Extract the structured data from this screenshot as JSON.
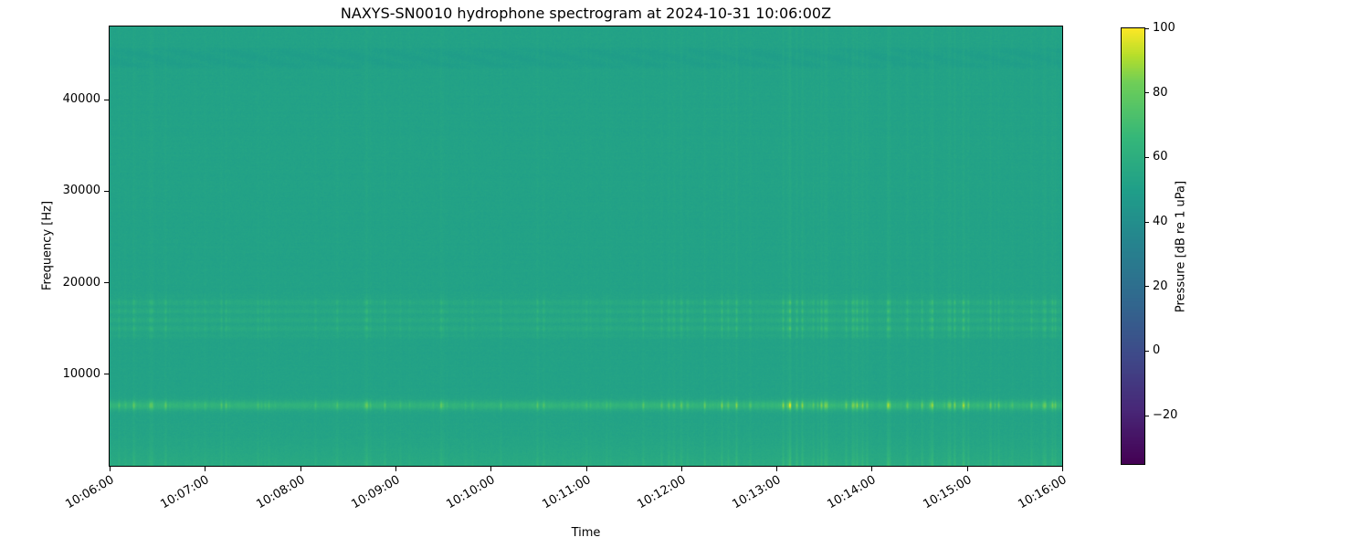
{
  "chart_data": {
    "type": "heatmap",
    "title": "NAXYS-SN0010 hydrophone spectrogram at 2024-10-31 10:06:00Z",
    "xlabel": "Time",
    "ylabel": "Frequency [Hz]",
    "grid": false,
    "legend": "none",
    "y_range_hz": [
      0,
      48000
    ],
    "x_range": [
      "10:06:00",
      "10:16:00"
    ],
    "x_ticks": [
      {
        "label": "10:06:00"
      },
      {
        "label": "10:07:00"
      },
      {
        "label": "10:08:00"
      },
      {
        "label": "10:09:00"
      },
      {
        "label": "10:10:00"
      },
      {
        "label": "10:11:00"
      },
      {
        "label": "10:12:00"
      },
      {
        "label": "10:13:00"
      },
      {
        "label": "10:14:00"
      },
      {
        "label": "10:15:00"
      },
      {
        "label": "10:16:00"
      }
    ],
    "y_ticks": [
      {
        "value": 10000,
        "label": "10000"
      },
      {
        "value": 20000,
        "label": "20000"
      },
      {
        "value": 30000,
        "label": "30000"
      },
      {
        "value": 40000,
        "label": "40000"
      }
    ],
    "colorbar": {
      "label": "Pressure [dB re 1 uPa]",
      "vmin": -35,
      "vmax": 100,
      "ticks": [
        {
          "value": 100,
          "label": "100"
        },
        {
          "value": 80,
          "label": "80"
        },
        {
          "value": 60,
          "label": "60"
        },
        {
          "value": 40,
          "label": "40"
        },
        {
          "value": 20,
          "label": "20"
        },
        {
          "value": 0,
          "label": "0"
        },
        {
          "value": -20,
          "label": "−20"
        }
      ]
    },
    "colormap": {
      "name": "viridis",
      "stops": [
        {
          "p": 0.0,
          "color": "#440154"
        },
        {
          "p": 0.125,
          "color": "#482878"
        },
        {
          "p": 0.25,
          "color": "#3e4a89"
        },
        {
          "p": 0.375,
          "color": "#31688e"
        },
        {
          "p": 0.5,
          "color": "#26828e"
        },
        {
          "p": 0.625,
          "color": "#1f9e89"
        },
        {
          "p": 0.75,
          "color": "#35b779"
        },
        {
          "p": 0.875,
          "color": "#6ece58"
        },
        {
          "p": 0.9375,
          "color": "#b5de2b"
        },
        {
          "p": 1.0,
          "color": "#fde725"
        }
      ]
    },
    "content": {
      "description": "Ambient level ~52 dB with vertical impulsive striping; bright tonal band near 6.6 kHz, elevated striated band 14-19 kHz, bright streaky band below 3 kHz, faint smooth darker band near 44-46 kHz.",
      "base_db": 52,
      "stripe_global_gain": 3,
      "noise_db": 1.5,
      "seed": 42,
      "bands": [
        {
          "kind": "exp-low",
          "scale_hz": 2200,
          "gain_db": 5,
          "stripe_gain_db": 11
        },
        {
          "kind": "gauss",
          "center_hz": 6600,
          "sigma_hz": 360,
          "gain_db": 9,
          "stripe_gain_db": 32
        },
        {
          "kind": "plateau",
          "lo_hz": 13800,
          "hi_hz": 18800,
          "edge_hz": 700,
          "gain_db": 3.5,
          "stripe_gain_db": 15,
          "striation_period_hz": 950
        },
        {
          "kind": "plateau",
          "lo_hz": 43200,
          "hi_hz": 45800,
          "edge_hz": 500,
          "gain_db": -2,
          "stripe_gain_db": 1,
          "wavy": true
        }
      ]
    }
  }
}
